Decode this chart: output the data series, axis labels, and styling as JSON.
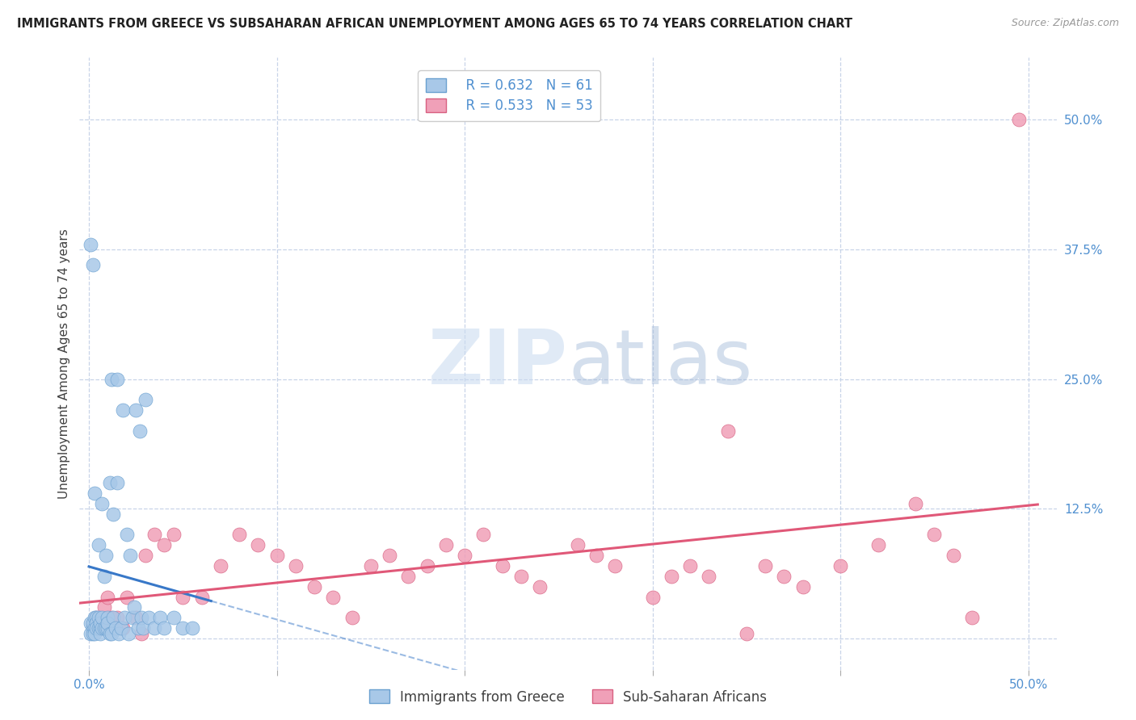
{
  "title": "IMMIGRANTS FROM GREECE VS SUBSAHARAN AFRICAN UNEMPLOYMENT AMONG AGES 65 TO 74 YEARS CORRELATION CHART",
  "source": "Source: ZipAtlas.com",
  "ylabel": "Unemployment Among Ages 65 to 74 years",
  "greece_color": "#a8c8e8",
  "greece_edge_color": "#6aa0d0",
  "subsaharan_color": "#f0a0b8",
  "subsaharan_edge_color": "#d86080",
  "regression_greece_color": "#3878c8",
  "regression_subsaharan_color": "#e05878",
  "r_greece": 0.632,
  "n_greece": 61,
  "r_subsaharan": 0.533,
  "n_subsaharan": 53,
  "watermark_zip": "ZIP",
  "watermark_atlas": "atlas",
  "grid_color": "#c8d4e8",
  "background_color": "#ffffff",
  "title_fontsize": 10.5,
  "tick_label_color": "#5090d0",
  "ylabel_color": "#404040",
  "title_color": "#222222",
  "source_color": "#999999",
  "legend_edge_color": "#cccccc",
  "right_yticks": [
    0.0,
    0.125,
    0.25,
    0.375,
    0.5
  ],
  "right_yticklabels": [
    "",
    "12.5%",
    "25.0%",
    "37.5%",
    "50.0%"
  ],
  "xtick_positions": [
    0.0,
    0.1,
    0.2,
    0.3,
    0.4,
    0.5
  ],
  "xticklabels": [
    "0.0%",
    "",
    "",
    "",
    "",
    "50.0%"
  ],
  "xlim": [
    -0.005,
    0.515
  ],
  "ylim": [
    -0.03,
    0.56
  ],
  "greece_x": [
    0.001,
    0.001,
    0.001,
    0.002,
    0.002,
    0.002,
    0.002,
    0.003,
    0.003,
    0.003,
    0.003,
    0.004,
    0.004,
    0.004,
    0.005,
    0.005,
    0.005,
    0.006,
    0.006,
    0.006,
    0.007,
    0.007,
    0.007,
    0.008,
    0.008,
    0.009,
    0.009,
    0.01,
    0.01,
    0.01,
    0.011,
    0.011,
    0.012,
    0.012,
    0.013,
    0.013,
    0.014,
    0.015,
    0.015,
    0.016,
    0.017,
    0.018,
    0.019,
    0.02,
    0.021,
    0.022,
    0.023,
    0.024,
    0.025,
    0.026,
    0.027,
    0.028,
    0.029,
    0.03,
    0.032,
    0.035,
    0.038,
    0.04,
    0.045,
    0.05,
    0.055
  ],
  "greece_y": [
    0.015,
    0.005,
    0.38,
    0.01,
    0.015,
    0.36,
    0.005,
    0.01,
    0.02,
    0.005,
    0.14,
    0.02,
    0.015,
    0.01,
    0.01,
    0.02,
    0.09,
    0.01,
    0.015,
    0.005,
    0.01,
    0.02,
    0.13,
    0.01,
    0.06,
    0.01,
    0.08,
    0.01,
    0.02,
    0.015,
    0.005,
    0.15,
    0.25,
    0.005,
    0.02,
    0.12,
    0.01,
    0.15,
    0.25,
    0.005,
    0.01,
    0.22,
    0.02,
    0.1,
    0.005,
    0.08,
    0.02,
    0.03,
    0.22,
    0.01,
    0.2,
    0.02,
    0.01,
    0.23,
    0.02,
    0.01,
    0.02,
    0.01,
    0.02,
    0.01,
    0.01
  ],
  "subsaharan_x": [
    0.004,
    0.006,
    0.008,
    0.01,
    0.012,
    0.015,
    0.018,
    0.02,
    0.025,
    0.028,
    0.03,
    0.035,
    0.04,
    0.045,
    0.05,
    0.06,
    0.07,
    0.08,
    0.09,
    0.1,
    0.11,
    0.12,
    0.13,
    0.14,
    0.15,
    0.16,
    0.17,
    0.18,
    0.19,
    0.2,
    0.21,
    0.22,
    0.23,
    0.24,
    0.26,
    0.27,
    0.28,
    0.3,
    0.31,
    0.32,
    0.33,
    0.34,
    0.35,
    0.36,
    0.37,
    0.38,
    0.4,
    0.42,
    0.44,
    0.45,
    0.46,
    0.47,
    0.495
  ],
  "subsaharan_y": [
    0.02,
    0.01,
    0.03,
    0.04,
    0.02,
    0.02,
    0.01,
    0.04,
    0.02,
    0.005,
    0.08,
    0.1,
    0.09,
    0.1,
    0.04,
    0.04,
    0.07,
    0.1,
    0.09,
    0.08,
    0.07,
    0.05,
    0.04,
    0.02,
    0.07,
    0.08,
    0.06,
    0.07,
    0.09,
    0.08,
    0.1,
    0.07,
    0.06,
    0.05,
    0.09,
    0.08,
    0.07,
    0.04,
    0.06,
    0.07,
    0.06,
    0.2,
    0.005,
    0.07,
    0.06,
    0.05,
    0.07,
    0.09,
    0.13,
    0.1,
    0.08,
    0.02,
    0.5
  ]
}
